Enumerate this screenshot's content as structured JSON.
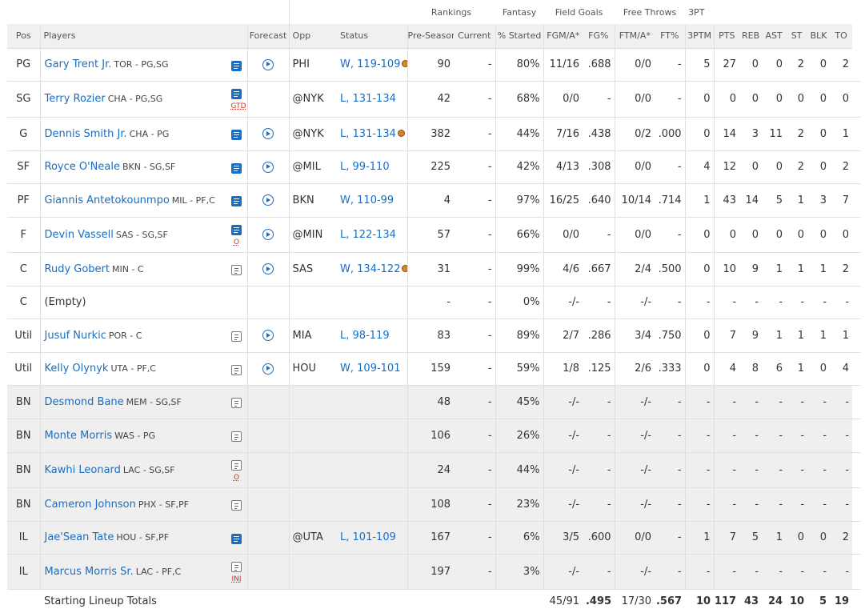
{
  "groups": {
    "rankings": "Rankings",
    "fantasy": "Fantasy",
    "field_goals": "Field Goals",
    "free_throws": "Free Throws",
    "three_pt": "3PT"
  },
  "columns": {
    "pos": "Pos",
    "players": "Players",
    "forecast": "Forecast",
    "opp": "Opp",
    "status": "Status",
    "preseason": "Pre-Season",
    "current": "Current",
    "pct_started": "% Started",
    "fgma": "FGM/A*",
    "fgpct": "FG%",
    "ftma": "FTM/A*",
    "ftpct": "FT%",
    "threeptm": "3PTM",
    "pts": "PTS",
    "reb": "REB",
    "ast": "AST",
    "st": "ST",
    "blk": "BLK",
    "to": "TO"
  },
  "rows": [
    {
      "pos": "PG",
      "name": "Gary Trent Jr.",
      "team": "TOR - PG,SG",
      "note": "active",
      "flag": "",
      "forecast": true,
      "opp": "PHI",
      "status": "W, 119-109",
      "ball": true,
      "pre": "90",
      "cur": "-",
      "pct": "80%",
      "fgma": "11/16",
      "fgp": ".688",
      "ftma": "0/0",
      "ftp": "-",
      "tpm": "5",
      "pts": "27",
      "reb": "0",
      "ast": "0",
      "st": "2",
      "blk": "0",
      "to": "2",
      "bench": false
    },
    {
      "pos": "SG",
      "name": "Terry Rozier",
      "team": "CHA - PG,SG",
      "note": "active",
      "flag": "GTD",
      "forecast": false,
      "opp": "@NYK",
      "status": "L, 131-134",
      "ball": false,
      "pre": "42",
      "cur": "-",
      "pct": "68%",
      "fgma": "0/0",
      "fgp": "-",
      "ftma": "0/0",
      "ftp": "-",
      "tpm": "0",
      "pts": "0",
      "reb": "0",
      "ast": "0",
      "st": "0",
      "blk": "0",
      "to": "0",
      "bench": false
    },
    {
      "pos": "G",
      "name": "Dennis Smith Jr.",
      "team": "CHA - PG",
      "note": "active",
      "flag": "",
      "forecast": true,
      "opp": "@NYK",
      "status": "L, 131-134",
      "ball": true,
      "pre": "382",
      "cur": "-",
      "pct": "44%",
      "fgma": "7/16",
      "fgp": ".438",
      "ftma": "0/2",
      "ftp": ".000",
      "tpm": "0",
      "pts": "14",
      "reb": "3",
      "ast": "11",
      "st": "2",
      "blk": "0",
      "to": "1",
      "bench": false
    },
    {
      "pos": "SF",
      "name": "Royce O'Neale",
      "team": "BKN - SG,SF",
      "note": "active",
      "flag": "",
      "forecast": true,
      "opp": "@MIL",
      "status": "L, 99-110",
      "ball": false,
      "pre": "225",
      "cur": "-",
      "pct": "42%",
      "fgma": "4/13",
      "fgp": ".308",
      "ftma": "0/0",
      "ftp": "-",
      "tpm": "4",
      "pts": "12",
      "reb": "0",
      "ast": "0",
      "st": "2",
      "blk": "0",
      "to": "2",
      "bench": false
    },
    {
      "pos": "PF",
      "name": "Giannis Antetokounmpo",
      "team": "MIL - PF,C",
      "note": "active",
      "flag": "",
      "forecast": true,
      "opp": "BKN",
      "status": "W, 110-99",
      "ball": false,
      "pre": "4",
      "cur": "-",
      "pct": "97%",
      "fgma": "16/25",
      "fgp": ".640",
      "ftma": "10/14",
      "ftp": ".714",
      "tpm": "1",
      "pts": "43",
      "reb": "14",
      "ast": "5",
      "st": "1",
      "blk": "3",
      "to": "7",
      "bench": false
    },
    {
      "pos": "F",
      "name": "Devin Vassell",
      "team": "SAS - SG,SF",
      "note": "active",
      "flag": "O",
      "forecast": true,
      "opp": "@MIN",
      "status": "L, 122-134",
      "ball": false,
      "pre": "57",
      "cur": "-",
      "pct": "66%",
      "fgma": "0/0",
      "fgp": "-",
      "ftma": "0/0",
      "ftp": "-",
      "tpm": "0",
      "pts": "0",
      "reb": "0",
      "ast": "0",
      "st": "0",
      "blk": "0",
      "to": "0",
      "bench": false
    },
    {
      "pos": "C",
      "name": "Rudy Gobert",
      "team": "MIN - C",
      "note": "inactive",
      "flag": "",
      "forecast": true,
      "opp": "SAS",
      "status": "W, 134-122",
      "ball": true,
      "pre": "31",
      "cur": "-",
      "pct": "99%",
      "fgma": "4/6",
      "fgp": ".667",
      "ftma": "2/4",
      "ftp": ".500",
      "tpm": "0",
      "pts": "10",
      "reb": "9",
      "ast": "1",
      "st": "1",
      "blk": "1",
      "to": "2",
      "bench": false
    },
    {
      "pos": "C",
      "name": "(Empty)",
      "team": "",
      "note": "",
      "flag": "",
      "forecast": false,
      "opp": "",
      "status": "",
      "ball": false,
      "pre": "-",
      "cur": "-",
      "pct": "0%",
      "fgma": "-/-",
      "fgp": "-",
      "ftma": "-/-",
      "ftp": "-",
      "tpm": "-",
      "pts": "-",
      "reb": "-",
      "ast": "-",
      "st": "-",
      "blk": "-",
      "to": "-",
      "bench": false,
      "empty": true
    },
    {
      "pos": "Util",
      "name": "Jusuf Nurkic",
      "team": "POR - C",
      "note": "inactive",
      "flag": "",
      "forecast": true,
      "opp": "MIA",
      "status": "L, 98-119",
      "ball": false,
      "pre": "83",
      "cur": "-",
      "pct": "89%",
      "fgma": "2/7",
      "fgp": ".286",
      "ftma": "3/4",
      "ftp": ".750",
      "tpm": "0",
      "pts": "7",
      "reb": "9",
      "ast": "1",
      "st": "1",
      "blk": "1",
      "to": "1",
      "bench": false
    },
    {
      "pos": "Util",
      "name": "Kelly Olynyk",
      "team": "UTA - PF,C",
      "note": "inactive",
      "flag": "",
      "forecast": true,
      "opp": "HOU",
      "status": "W, 109-101",
      "ball": false,
      "pre": "159",
      "cur": "-",
      "pct": "59%",
      "fgma": "1/8",
      "fgp": ".125",
      "ftma": "2/6",
      "ftp": ".333",
      "tpm": "0",
      "pts": "4",
      "reb": "8",
      "ast": "6",
      "st": "1",
      "blk": "0",
      "to": "4",
      "bench": false
    },
    {
      "pos": "BN",
      "name": "Desmond Bane",
      "team": "MEM - SG,SF",
      "note": "inactive",
      "flag": "",
      "forecast": false,
      "opp": "",
      "status": "",
      "ball": false,
      "pre": "48",
      "cur": "-",
      "pct": "45%",
      "fgma": "-/-",
      "fgp": "-",
      "ftma": "-/-",
      "ftp": "-",
      "tpm": "-",
      "pts": "-",
      "reb": "-",
      "ast": "-",
      "st": "-",
      "blk": "-",
      "to": "-",
      "bench": true
    },
    {
      "pos": "BN",
      "name": "Monte Morris",
      "team": "WAS - PG",
      "note": "inactive",
      "flag": "",
      "forecast": false,
      "opp": "",
      "status": "",
      "ball": false,
      "pre": "106",
      "cur": "-",
      "pct": "26%",
      "fgma": "-/-",
      "fgp": "-",
      "ftma": "-/-",
      "ftp": "-",
      "tpm": "-",
      "pts": "-",
      "reb": "-",
      "ast": "-",
      "st": "-",
      "blk": "-",
      "to": "-",
      "bench": true
    },
    {
      "pos": "BN",
      "name": "Kawhi Leonard",
      "team": "LAC - SG,SF",
      "note": "inactive",
      "flag": "O",
      "forecast": false,
      "opp": "",
      "status": "",
      "ball": false,
      "pre": "24",
      "cur": "-",
      "pct": "44%",
      "fgma": "-/-",
      "fgp": "-",
      "ftma": "-/-",
      "ftp": "-",
      "tpm": "-",
      "pts": "-",
      "reb": "-",
      "ast": "-",
      "st": "-",
      "blk": "-",
      "to": "-",
      "bench": true
    },
    {
      "pos": "BN",
      "name": "Cameron Johnson",
      "team": "PHX - SF,PF",
      "note": "inactive",
      "flag": "",
      "forecast": false,
      "opp": "",
      "status": "",
      "ball": false,
      "pre": "108",
      "cur": "-",
      "pct": "23%",
      "fgma": "-/-",
      "fgp": "-",
      "ftma": "-/-",
      "ftp": "-",
      "tpm": "-",
      "pts": "-",
      "reb": "-",
      "ast": "-",
      "st": "-",
      "blk": "-",
      "to": "-",
      "bench": true
    },
    {
      "pos": "IL",
      "name": "Jae'Sean Tate",
      "team": "HOU - SF,PF",
      "note": "active",
      "flag": "",
      "forecast": false,
      "opp": "@UTA",
      "status": "L, 101-109",
      "ball": false,
      "pre": "167",
      "cur": "-",
      "pct": "6%",
      "fgma": "3/5",
      "fgp": ".600",
      "ftma": "0/0",
      "ftp": "-",
      "tpm": "1",
      "pts": "7",
      "reb": "5",
      "ast": "1",
      "st": "0",
      "blk": "0",
      "to": "2",
      "bench": true
    },
    {
      "pos": "IL",
      "name": "Marcus Morris Sr.",
      "team": "LAC - PF,C",
      "note": "inactive",
      "flag": "INJ",
      "forecast": false,
      "opp": "",
      "status": "",
      "ball": false,
      "pre": "197",
      "cur": "-",
      "pct": "3%",
      "fgma": "-/-",
      "fgp": "-",
      "ftma": "-/-",
      "ftp": "-",
      "tpm": "-",
      "pts": "-",
      "reb": "-",
      "ast": "-",
      "st": "-",
      "blk": "-",
      "to": "-",
      "bench": true
    }
  ],
  "totals": {
    "label": "Starting Lineup Totals",
    "fgma": "45/91",
    "fgp": ".495",
    "ftma": "17/30",
    "ftp": ".567",
    "tpm": "10",
    "pts": "117",
    "reb": "43",
    "ast": "24",
    "st": "10",
    "blk": "5",
    "to": "19"
  }
}
